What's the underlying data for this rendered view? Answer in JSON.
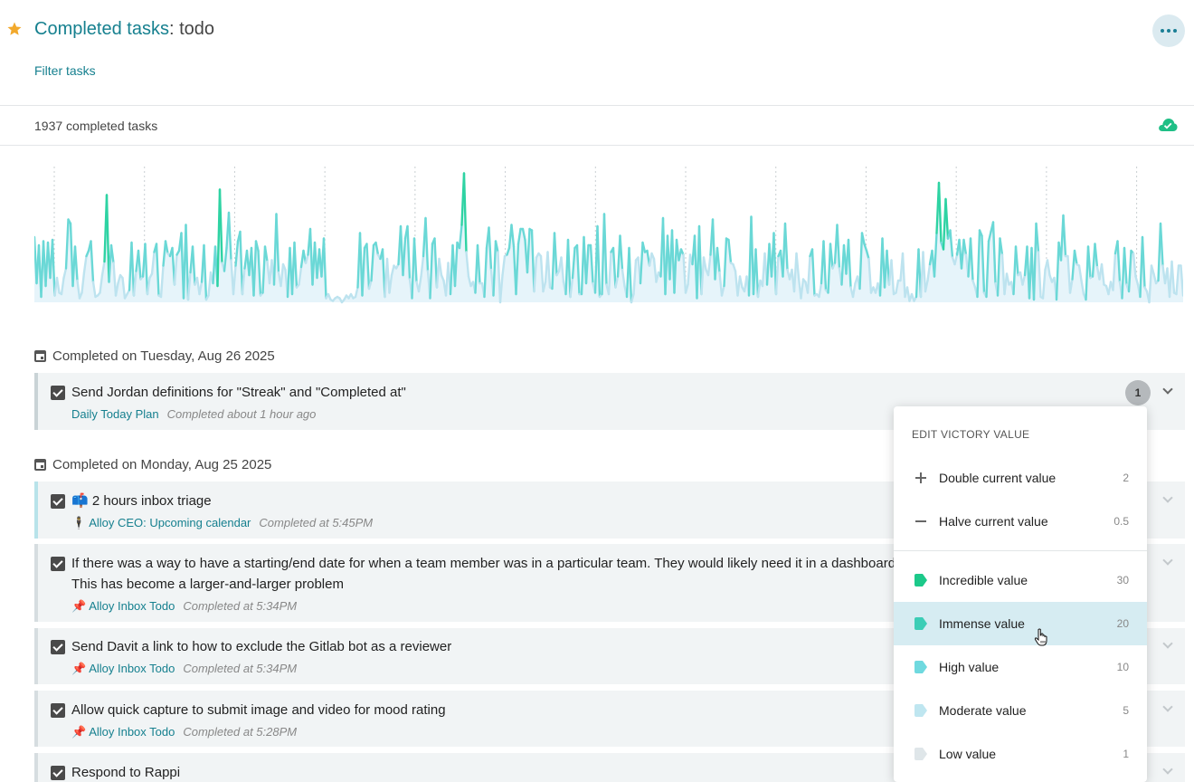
{
  "header": {
    "title": "Completed tasks",
    "title_suffix": ": todo",
    "filter_link": "Filter tasks",
    "more_icon": "ellipsis-icon",
    "star_icon": "star-icon"
  },
  "stats": {
    "count_text": "1937 completed tasks",
    "sync_icon": "cloud-check-icon"
  },
  "chart_data": {
    "type": "area",
    "title": "",
    "xlabel": "",
    "ylabel": "",
    "ylim": [
      0,
      1
    ],
    "grid": "vertical dotted gridlines",
    "legend": "none",
    "colors": {
      "high": "#2ed3a3",
      "mid": "#6ad8d6",
      "low": "#bde3ef",
      "fill": "#e6f4fa"
    },
    "values": [
      0.48,
      0.14,
      0.42,
      0.04,
      0.45,
      0.12,
      0.44,
      0.18,
      0.46,
      0.05,
      0.18,
      0.07,
      0.06,
      0.18,
      0.25,
      0.61,
      0.58,
      0.12,
      0.41,
      0.16,
      0.03,
      0.07,
      0.22,
      0.34,
      0.38,
      0.45,
      0.15,
      0.04,
      0.05,
      0.07,
      0.2,
      0.3,
      0.79,
      0.15,
      0.42,
      0.29,
      0.05,
      0.14,
      0.2,
      0.18,
      0.03,
      0.06,
      0.09,
      0.44,
      0.05,
      0.23,
      0.38,
      0.17,
      0.19,
      0.43,
      0.06,
      0.18,
      0.21,
      0.37,
      0.43,
      0.05,
      0.04,
      0.27,
      0.45,
      0.36,
      0.34,
      0.4,
      0.13,
      0.35,
      0.38,
      0.51,
      0.03,
      0.57,
      0.02,
      0.22,
      0.41,
      0.13,
      0.18,
      0.06,
      0.15,
      0.42,
      0.02,
      0.05,
      0.22,
      0.14,
      0.41,
      0.12,
      0.83,
      0.29,
      0.23,
      0.4,
      0.66,
      0.31,
      0.06,
      0.27,
      0.45,
      0.52,
      0.06,
      0.25,
      0.38,
      0.2,
      0.4,
      0.05,
      0.45,
      0.38,
      0.05,
      0.07,
      0.41,
      0.3,
      0.14,
      0.31,
      0.13,
      0.65,
      0.22,
      0.12,
      0.28,
      0.24,
      0.04,
      0.4,
      0.06,
      0.44,
      0.11,
      0.13,
      0.26,
      0.38,
      0.29,
      0.35,
      0.54,
      0.13,
      0.44,
      0.18,
      0.39,
      0.19,
      0.47,
      0.03,
      0.06,
      0.02,
      0.01,
      0.03,
      0.04,
      0.03,
      0.0,
      0.02,
      0.05,
      0.03,
      0.06,
      0.03,
      0.04,
      0.11,
      0.51,
      0.05,
      0.4,
      0.43,
      0.1,
      0.16,
      0.42,
      0.44,
      0.35,
      0.32,
      0.39,
      0.04,
      0.32,
      0.07,
      0.2,
      0.27,
      0.25,
      0.28,
      0.56,
      0.2,
      0.47,
      0.56,
      0.17,
      0.03,
      0.47,
      0.15,
      0.08,
      0.19,
      0.34,
      0.62,
      0.23,
      0.03,
      0.43,
      0.47,
      0.11,
      0.32,
      0.2,
      0.16,
      0.05,
      0.29,
      0.06,
      0.42,
      0.12,
      0.44,
      0.4,
      0.57,
      0.95,
      0.37,
      0.19,
      0.12,
      0.15,
      0.07,
      0.42,
      0.14,
      0.14,
      0.04,
      0.4,
      0.55,
      0.24,
      0.05,
      0.45,
      0.37,
      0.0,
      0.2,
      0.34,
      0.35,
      0.4,
      0.57,
      0.41,
      0.06,
      0.43,
      0.54,
      0.54,
      0.46,
      0.22,
      0.54,
      0.53,
      0.08,
      0.33,
      0.36,
      0.34,
      0.08,
      0.15,
      0.37,
      0.11,
      0.1,
      0.51,
      0.2,
      0.23,
      0.33,
      0.15,
      0.06,
      0.46,
      0.04,
      0.18,
      0.4,
      0.42,
      0.06,
      0.06,
      0.48,
      0.14,
      0.42,
      0.42,
      0.14,
      0.07,
      0.56,
      0.04,
      0.06,
      0.65,
      0.13,
      0.06,
      0.37,
      0.4,
      0.11,
      0.19,
      0.49,
      0.24,
      0.12,
      0.04,
      0.4,
      0.0,
      0.06,
      0.31,
      0.33,
      0.14,
      0.44,
      0.37,
      0.38,
      0.27,
      0.36,
      0.32,
      0.15,
      0.22,
      0.19,
      0.62,
      0.06,
      0.49,
      0.17,
      0.53,
      0.07,
      0.46,
      0.31,
      0.39,
      0.35,
      0.07,
      0.13,
      0.35,
      0.28,
      0.49,
      0.03,
      0.56,
      0.06,
      0.33,
      0.24,
      0.2,
      0.35,
      0.61,
      0.17,
      0.4,
      0.22,
      0.05,
      0.12,
      0.47,
      0.46,
      0.29,
      0.28,
      0.23,
      0.05,
      0.19,
      0.11,
      0.08,
      0.19,
      0.05,
      0.63,
      0.06,
      0.39,
      0.04,
      0.16,
      0.12,
      0.36,
      0.13,
      0.43,
      0.19,
      0.51,
      0.06,
      0.34,
      0.38,
      0.19,
      0.58,
      0.24,
      0.17,
      0.24,
      0.08,
      0.36,
      0.18,
      0.03,
      0.17,
      0.15,
      0.07,
      0.34,
      0.39,
      0.05,
      0.06,
      0.04,
      0.14,
      0.45,
      0.09,
      0.07,
      0.43,
      0.25,
      0.29,
      0.57,
      0.25,
      0.13,
      0.42,
      0.21,
      0.46,
      0.11,
      0.04,
      0.14,
      0.19,
      0.1,
      0.51,
      0.43,
      0.38,
      0.32,
      0.07,
      0.11,
      0.07,
      0.14,
      0.05,
      0.47,
      0.11,
      0.38,
      0.13,
      0.31,
      0.06,
      0.07,
      0.16,
      0.16,
      0.36,
      0.04,
      0.11,
      0.01,
      0.06,
      0.01,
      0.04,
      0.39,
      0.04,
      0.37,
      0.08,
      0.16,
      0.28,
      0.38,
      0.19,
      0.51,
      0.88,
      0.44,
      0.39,
      0.76,
      0.47,
      0.53,
      0.33,
      0.28,
      0.35,
      0.46,
      0.25,
      0.46,
      0.35,
      0.19,
      0.47,
      0.16,
      0.11,
      0.04,
      0.53,
      0.49,
      0.07,
      0.04,
      0.45,
      0.52,
      0.59,
      0.14,
      0.05,
      0.47,
      0.35,
      0.06,
      0.21,
      0.13,
      0.15,
      0.06,
      0.41,
      0.2,
      0.22,
      0.13,
      0.2,
      0.41,
      0.03,
      0.4,
      0.02,
      0.58,
      0.37,
      0.04,
      0.03,
      0.24,
      0.31,
      0.2,
      0.15,
      0.18,
      0.02,
      0.44,
      0.31,
      0.64,
      0.34,
      0.34,
      0.07,
      0.17,
      0.38,
      0.28,
      0.27,
      0.16,
      0.06,
      0.02,
      0.41,
      0.18,
      0.19,
      0.43,
      0.26,
      0.17,
      0.28,
      0.13,
      0.12,
      0.06,
      0.15,
      0.09,
      0.36,
      0.45,
      0.15,
      0.03,
      0.4,
      0.13,
      0.08,
      0.38,
      0.36,
      0.19,
      0.13,
      0.04,
      0.48,
      0.11,
      0.08,
      0.0,
      0.27,
      0.21,
      0.14,
      0.16,
      0.58,
      0.27,
      0.14,
      0.25,
      0.04,
      0.3,
      0.07,
      0.06,
      0.27,
      0.27,
      0.05
    ],
    "gridline_count": 13
  },
  "sections": [
    {
      "heading": "Completed on Tuesday, Aug 26 2025",
      "tasks": [
        {
          "title": "Send Jordan definitions for \"Streak\" and \"Completed at\"",
          "project": "Daily Today Plan",
          "project_emoji": "",
          "completed": "Completed about 1 hour ago",
          "badge": "1"
        }
      ]
    },
    {
      "heading": "Completed on Monday, Aug 25 2025",
      "tasks": [
        {
          "title": "📫 2 hours inbox triage",
          "project": "Alloy CEO: Upcoming calendar",
          "project_emoji": "🕴",
          "completed": "Completed at 5:45PM"
        },
        {
          "title": "If there was a way to have a starting/end date for when a team member was in a particular team. They would likely need it in a dashboard. This has become a larger-and-larger problem",
          "project": "Alloy Inbox Todo",
          "project_emoji": "📌",
          "completed": "Completed at 5:34PM"
        },
        {
          "title": "Send Davit a link to how to exclude the Gitlab bot as a reviewer",
          "project": "Alloy Inbox Todo",
          "project_emoji": "📌",
          "completed": "Completed at 5:34PM"
        },
        {
          "title": "Allow quick capture to submit image and video for mood rating",
          "project": "Alloy Inbox Todo",
          "project_emoji": "📌",
          "completed": "Completed at 5:28PM"
        },
        {
          "title": "Respond to Rappi",
          "project": "",
          "project_emoji": "",
          "completed": ""
        }
      ]
    }
  ],
  "menu": {
    "heading": "EDIT VICTORY VALUE",
    "actions": [
      {
        "label": "Double current value",
        "value": "2",
        "icon": "plus-icon"
      },
      {
        "label": "Halve current value",
        "value": "0.5",
        "icon": "minus-icon"
      }
    ],
    "levels": [
      {
        "label": "Incredible value",
        "value": "30",
        "color": "#1cc98a"
      },
      {
        "label": "Immense value",
        "value": "20",
        "color": "#3ccdb6"
      },
      {
        "label": "High value",
        "value": "10",
        "color": "#6fd9df"
      },
      {
        "label": "Moderate value",
        "value": "5",
        "color": "#bfe6f0"
      },
      {
        "label": "Low value",
        "value": "1",
        "color": "#dfe6e9"
      }
    ],
    "hovered": "Immense value"
  }
}
